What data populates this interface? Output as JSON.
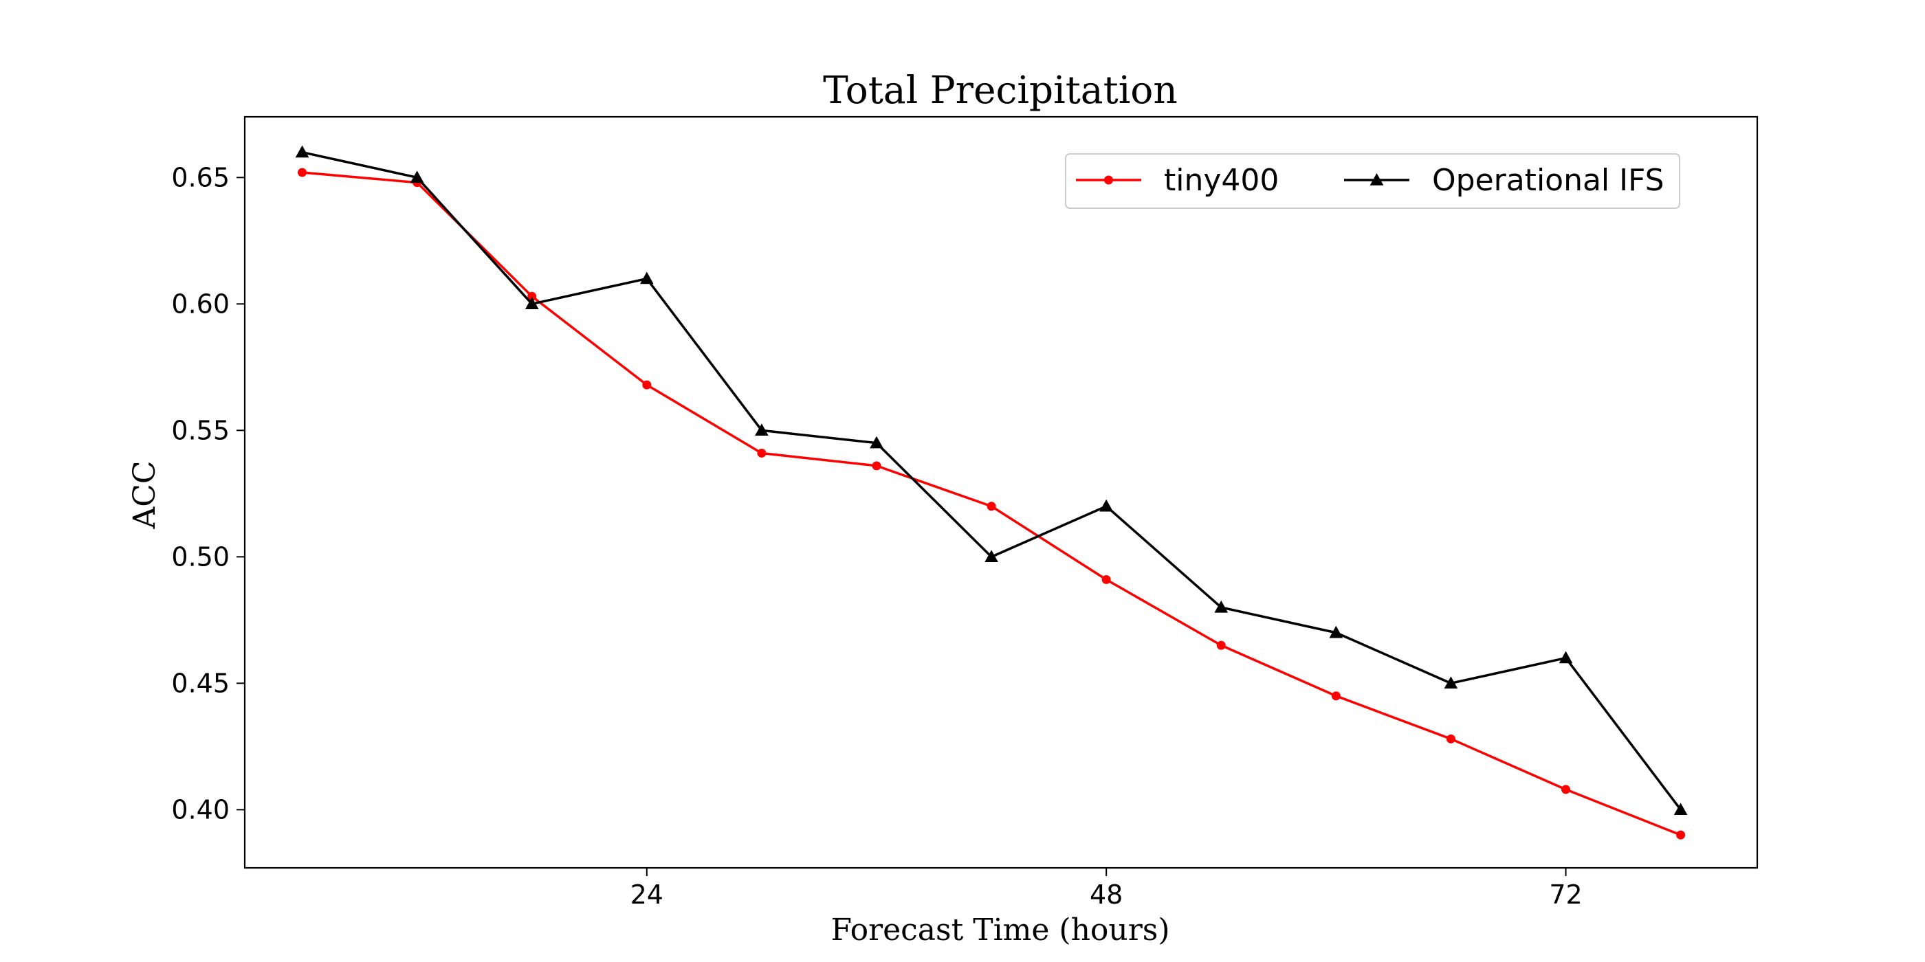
{
  "chart_data": {
    "type": "line",
    "title": "Total Precipitation",
    "xlabel": "Forecast Time (hours)",
    "ylabel": "ACC",
    "xlim": [
      3,
      82
    ],
    "ylim": [
      0.377,
      0.674
    ],
    "xticks": [
      24,
      48,
      72
    ],
    "xtick_labels": [
      "24",
      "48",
      "72"
    ],
    "yticks": [
      0.4,
      0.45,
      0.5,
      0.55,
      0.6,
      0.65
    ],
    "ytick_labels": [
      "0.40",
      "0.45",
      "0.50",
      "0.55",
      "0.60",
      "0.65"
    ],
    "grid": false,
    "legend": {
      "position": "top-right",
      "ncol": 2
    },
    "x": [
      6,
      12,
      18,
      24,
      30,
      36,
      42,
      48,
      54,
      60,
      66,
      72,
      78
    ],
    "series": [
      {
        "name": "tiny400",
        "color": "#ff0000",
        "marker": "circle",
        "values": [
          0.652,
          0.648,
          0.603,
          0.568,
          0.541,
          0.536,
          0.52,
          0.491,
          0.465,
          0.445,
          0.428,
          0.408,
          0.39
        ]
      },
      {
        "name": "Operational IFS",
        "color": "#000000",
        "marker": "triangle",
        "values": [
          0.66,
          0.65,
          0.6,
          0.61,
          0.55,
          0.545,
          0.5,
          0.52,
          0.48,
          0.47,
          0.45,
          0.46,
          0.4
        ]
      }
    ]
  }
}
